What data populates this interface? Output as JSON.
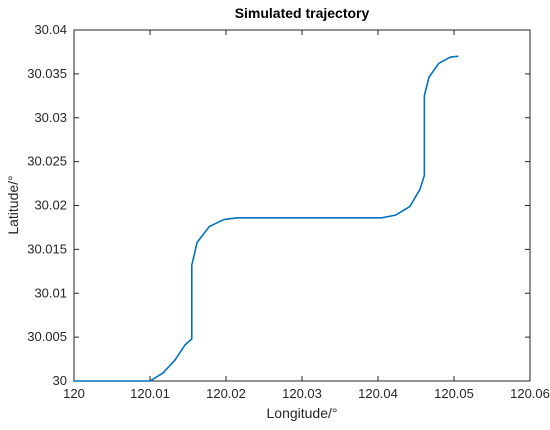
{
  "chart_data": {
    "type": "line",
    "title": "Simulated trajectory",
    "xlabel": "Longitude/°",
    "ylabel": "Latitude/°",
    "xlim": [
      120,
      120.06
    ],
    "ylim": [
      30,
      30.04
    ],
    "xticks": [
      "120",
      "120.01",
      "120.02",
      "120.03",
      "120.04",
      "120.05",
      "120.06"
    ],
    "yticks": [
      "30",
      "30.005",
      "30.01",
      "30.015",
      "30.02",
      "30.025",
      "30.03",
      "30.035",
      "30.04"
    ],
    "grid": false,
    "series": [
      {
        "color": "#0072bd",
        "x": [
          120.0,
          120.01,
          120.0117,
          120.0133,
          120.0146,
          120.0155,
          120.0155,
          120.0155,
          120.0162,
          120.0178,
          120.0197,
          120.0215,
          120.0405,
          120.0423,
          120.0442,
          120.0455,
          120.0461,
          120.0461,
          120.0461,
          120.0467,
          120.048,
          120.0495,
          120.0505
        ],
        "y": [
          30.0,
          30.0,
          30.0009,
          30.0024,
          30.0041,
          30.0048,
          30.0105,
          30.0132,
          30.0158,
          30.0176,
          30.0184,
          30.0186,
          30.0186,
          30.0189,
          30.0199,
          30.0218,
          30.0234,
          30.0292,
          30.0325,
          30.0346,
          30.0362,
          30.0369,
          30.037
        ]
      }
    ]
  }
}
